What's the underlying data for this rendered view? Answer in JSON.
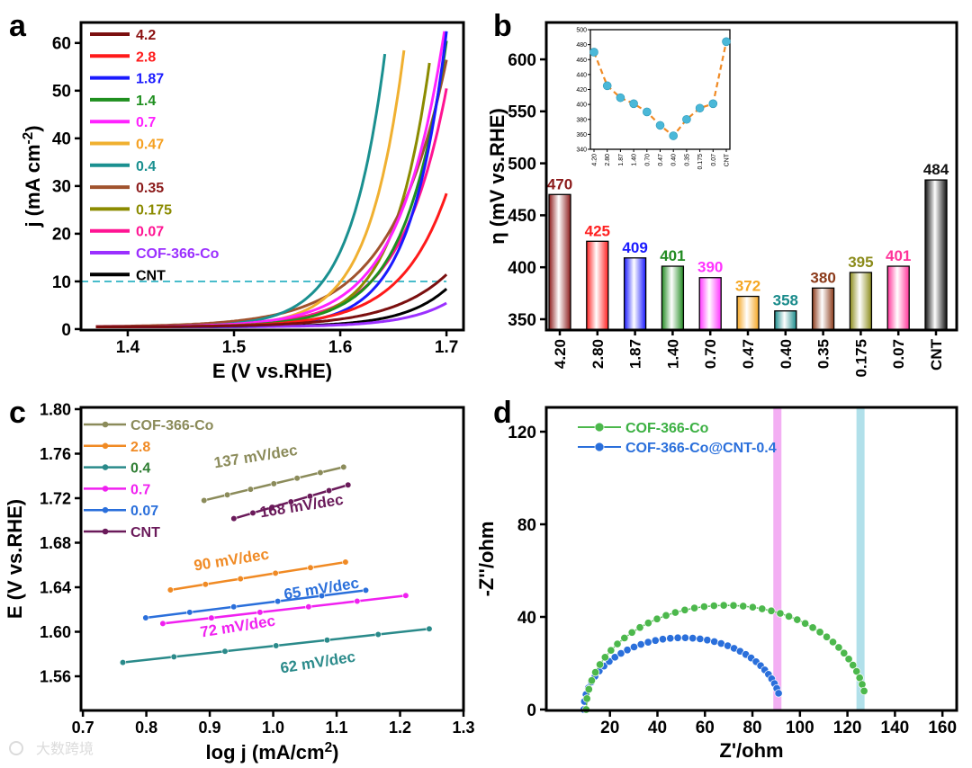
{
  "panel_letters": [
    "a",
    "b",
    "c",
    "d"
  ],
  "watermark": "大数跨境",
  "chart_data": [
    {
      "panel": "a",
      "type": "line",
      "xlabel": "E (V vs.RHE)",
      "ylabel": {
        "main": "j (mA cm",
        "sup": "-2",
        "tail": ")"
      },
      "xlim": [
        1.356,
        1.716
      ],
      "ylim": [
        -0.2,
        64.3
      ],
      "xticks": [
        1.4,
        1.5,
        1.6,
        1.7
      ],
      "xtick_labels": [
        "1.4",
        "1.5",
        "1.6",
        "1.7"
      ],
      "yticks": [
        0,
        10,
        20,
        30,
        40,
        50,
        60
      ],
      "ytick_labels": [
        "0",
        "10",
        "20",
        "30",
        "40",
        "50",
        "60"
      ],
      "reference_line": {
        "y": 10,
        "style": "dashed",
        "color": "#3bb8c8"
      },
      "legend_position": "top-left",
      "series": [
        {
          "name": "4.2",
          "color": "#7b0f0f",
          "label_color": "#8b1010",
          "E_at_10": 1.695,
          "E_end": 1.7,
          "j_end": 11
        },
        {
          "name": "2.8",
          "color": "#ff1a1a",
          "label_color": "#ff1a1a",
          "E_at_10": 1.655,
          "E_end": 1.7,
          "j_end": 28
        },
        {
          "name": "1.87",
          "color": "#1a1aff",
          "label_color": "#1a1aff",
          "E_at_10": 1.639,
          "E_end": 1.7,
          "j_end": 62
        },
        {
          "name": "1.4",
          "color": "#1f8f1f",
          "label_color": "#1f8f1f",
          "E_at_10": 1.631,
          "E_end": 1.7,
          "j_end": 60
        },
        {
          "name": "0.7",
          "color": "#ff22ff",
          "label_color": "#ff22ff",
          "E_at_10": 1.62,
          "E_end": 1.698,
          "j_end": 62
        },
        {
          "name": "0.47",
          "color": "#f0b030",
          "label_color": "#f5a020",
          "E_at_10": 1.602,
          "E_end": 1.66,
          "j_end": 58
        },
        {
          "name": "0.4",
          "color": "#1a9090",
          "label_color": "#1a9090",
          "E_at_10": 1.585,
          "E_end": 1.643,
          "j_end": 59
        },
        {
          "name": "0.35",
          "color": "#a0522d",
          "label_color": "#8b1a1a",
          "E_at_10": 1.61,
          "E_end": 1.7,
          "j_end": 56
        },
        {
          "name": "0.175",
          "color": "#8b8b00",
          "label_color": "#8b8b00",
          "E_at_10": 1.625,
          "E_end": 1.685,
          "j_end": 57
        },
        {
          "name": "0.07",
          "color": "#ff1493",
          "label_color": "#ff1493",
          "E_at_10": 1.631,
          "E_end": 1.7,
          "j_end": 50
        },
        {
          "name": "COF-366-Co",
          "color": "#9b30ff",
          "label_color": "#9b30ff",
          "E_at_10": 1.728,
          "E_end": 1.7,
          "j_end": 5
        },
        {
          "name": "CNT",
          "color": "#000000",
          "label_color": "#000000",
          "E_at_10": 1.709,
          "E_end": 1.7,
          "j_end": 8
        }
      ]
    },
    {
      "panel": "b",
      "type": "bar",
      "ylabel": "η (mV vs.RHE)",
      "xlabel": "",
      "ylim": [
        339.6,
        635.5
      ],
      "yticks": [
        350,
        400,
        450,
        500,
        550,
        600
      ],
      "ytick_labels": [
        "350",
        "400",
        "450",
        "500",
        "550",
        "600"
      ],
      "categories": [
        "4.20",
        "2.80",
        "1.87",
        "1.40",
        "0.70",
        "0.47",
        "0.40",
        "0.35",
        "0.175",
        "0.07",
        "CNT"
      ],
      "values": [
        470,
        425,
        409,
        401,
        390,
        372,
        358,
        380,
        395,
        401,
        484
      ],
      "value_labels": [
        "470",
        "425",
        "409",
        "401",
        "390",
        "372",
        "358",
        "380",
        "395",
        "401",
        "484"
      ],
      "colors": [
        "#8b1a1a",
        "#ff2020",
        "#1a1aff",
        "#228b22",
        "#ff33ff",
        "#f5a623",
        "#1a8b8b",
        "#8b3a1a",
        "#8b8b1a",
        "#ff3399",
        "#111111"
      ],
      "inset": {
        "type": "line",
        "ylim": [
          340,
          500
        ],
        "yticks": [
          340,
          360,
          380,
          400,
          420,
          440,
          460,
          480,
          500
        ],
        "ytick_labels": [
          "340",
          "360",
          "380",
          "400",
          "420",
          "440",
          "460",
          "480",
          "500"
        ],
        "categories": [
          "4.20",
          "2.80",
          "1.87",
          "1.40",
          "0.70",
          "0.47",
          "0.40",
          "0.35",
          "0.175",
          "0.07",
          "CNT"
        ],
        "values": [
          470,
          425,
          409,
          401,
          390,
          372,
          358,
          380,
          395,
          401,
          484
        ],
        "line_color": "#f08a24",
        "marker_color": "#4ab8d8"
      }
    },
    {
      "panel": "c",
      "type": "line",
      "xlabel": {
        "main": "log j (mA/cm",
        "sup": "2",
        "tail": ")"
      },
      "ylabel": "E (V vs.RHE)",
      "xlim": [
        0.697,
        1.3
      ],
      "ylim": [
        1.5293,
        1.8016
      ],
      "xticks": [
        0.7,
        0.8,
        0.9,
        1.0,
        1.1,
        1.2,
        1.3
      ],
      "xtick_labels": [
        "0.7",
        "0.8",
        "0.9",
        "1.0",
        "1.1",
        "1.2",
        "1.3"
      ],
      "yticks": [
        1.56,
        1.6,
        1.64,
        1.68,
        1.72,
        1.76,
        1.8
      ],
      "ytick_labels": [
        "1.56",
        "1.60",
        "1.64",
        "1.68",
        "1.72",
        "1.76",
        "1.80"
      ],
      "legend_position": "top-left",
      "series": [
        {
          "name": "COF-366-Co",
          "color": "#8b8b5a",
          "label_color": "#8b8b5a",
          "x_start": 0.891,
          "y_start": 1.718,
          "x_end": 1.111,
          "y_end": 1.748,
          "n": 7,
          "slope_label": "137 mV/dec"
        },
        {
          "name": "2.8",
          "color": "#f08a24",
          "label_color": "#f08a24",
          "x_start": 0.838,
          "y_start": 1.6376,
          "x_end": 1.114,
          "y_end": 1.6626,
          "n": 6,
          "slope_label": "90 mV/dec"
        },
        {
          "name": "0.4",
          "color": "#2a8a8a",
          "label_color": "#2e7d32",
          "x_start": 0.763,
          "y_start": 1.5724,
          "x_end": 1.246,
          "y_end": 1.6026,
          "n": 7,
          "slope_label": "62 mV/dec"
        },
        {
          "name": "0.7",
          "color": "#f020f0",
          "label_color": "#f020f0",
          "x_start": 0.826,
          "y_start": 1.6074,
          "x_end": 1.209,
          "y_end": 1.6325,
          "n": 6,
          "slope_label": "72 mV/dec"
        },
        {
          "name": "0.07",
          "color": "#2a6fdb",
          "label_color": "#2a6fdb",
          "x_start": 0.799,
          "y_start": 1.6125,
          "x_end": 1.146,
          "y_end": 1.6373,
          "n": 6,
          "slope_label": "65 mV/dec"
        },
        {
          "name": "CNT",
          "color": "#6a1a5a",
          "label_color": "#6a1a5a",
          "x_start": 0.938,
          "y_start": 1.7017,
          "x_end": 1.118,
          "y_end": 1.7319,
          "n": 7,
          "slope_label": "168 mV/dec"
        }
      ]
    },
    {
      "panel": "d",
      "type": "scatter",
      "xlabel": "Z'/ohm",
      "ylabel": "-Z''/ohm",
      "xlim": [
        -6.8,
        166
      ],
      "ylim": [
        -0.4,
        130.5
      ],
      "xticks": [
        20,
        40,
        60,
        80,
        100,
        120,
        140,
        160
      ],
      "xtick_labels": [
        "20",
        "40",
        "60",
        "80",
        "100",
        "120",
        "140",
        "160"
      ],
      "yticks": [
        0,
        40,
        80,
        120
      ],
      "ytick_labels": [
        "0",
        "40",
        "80",
        "120"
      ],
      "legend_position": "top-left",
      "vertical_bands": [
        {
          "x": 90.5,
          "color": "#f2a6f2"
        },
        {
          "x": 125.5,
          "color": "#a8dde8"
        }
      ],
      "series": [
        {
          "name": "COF-366-Co",
          "color": "#4cb84c",
          "label_color": "#3cb043",
          "x_start": 10,
          "x_end": 127,
          "peak": 45,
          "y_end": 8,
          "n": 42
        },
        {
          "name": "COF-366-Co@CNT-0.4",
          "color": "#2a6fdb",
          "label_color": "#2a6fdb",
          "x_start": 9,
          "x_end": 91,
          "peak": 31,
          "y_end": 7,
          "n": 38
        }
      ]
    }
  ]
}
